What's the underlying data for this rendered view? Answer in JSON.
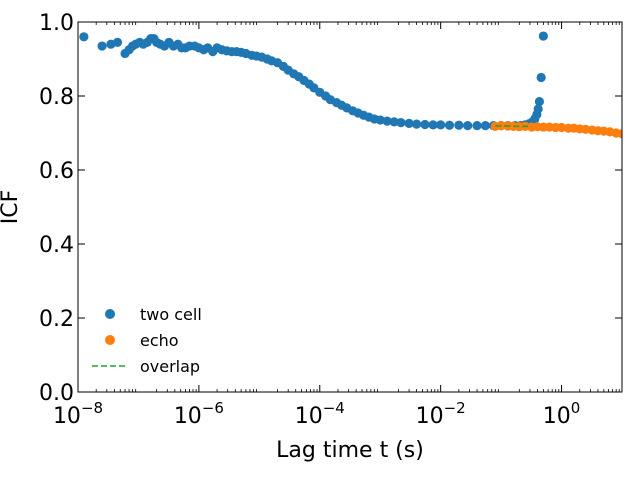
{
  "chart_data": {
    "type": "scatter",
    "xlabel": "Lag time t (s)",
    "ylabel": "ICF",
    "xscale": "log",
    "xlim": [
      1e-08,
      10
    ],
    "ylim": [
      0.0,
      1.0
    ],
    "x_ticks": [
      {
        "value": 1e-08,
        "base": "10",
        "exp": "−8"
      },
      {
        "value": 1e-06,
        "base": "10",
        "exp": "−6"
      },
      {
        "value": 0.0001,
        "base": "10",
        "exp": "−4"
      },
      {
        "value": 0.01,
        "base": "10",
        "exp": "−2"
      },
      {
        "value": 1,
        "base": "10",
        "exp": "0"
      }
    ],
    "y_ticks": [
      {
        "value": 0.0,
        "label": "0.0"
      },
      {
        "value": 0.2,
        "label": "0.2"
      },
      {
        "value": 0.4,
        "label": "0.4"
      },
      {
        "value": 0.6,
        "label": "0.6"
      },
      {
        "value": 0.8,
        "label": "0.8"
      },
      {
        "value": 1.0,
        "label": "1.0"
      }
    ],
    "grid": false,
    "legend_position": "lower-left",
    "series": [
      {
        "name": "two cell",
        "color": "#1f77b4",
        "style": "markers",
        "points": [
          [
            1.25e-08,
            0.96
          ],
          [
            2.5e-08,
            0.935
          ],
          [
            3.5e-08,
            0.94
          ],
          [
            4.5e-08,
            0.945
          ],
          [
            6e-08,
            0.915
          ],
          [
            7e-08,
            0.925
          ],
          [
            8e-08,
            0.935
          ],
          [
            9e-08,
            0.94
          ],
          [
            1.05e-07,
            0.945
          ],
          [
            1.2e-07,
            0.94
          ],
          [
            1.4e-07,
            0.945
          ],
          [
            1.6e-07,
            0.955
          ],
          [
            1.8e-07,
            0.955
          ],
          [
            2e-07,
            0.945
          ],
          [
            2.3e-07,
            0.94
          ],
          [
            2.7e-07,
            0.935
          ],
          [
            3.2e-07,
            0.945
          ],
          [
            3.8e-07,
            0.935
          ],
          [
            4.5e-07,
            0.94
          ],
          [
            5.2e-07,
            0.93
          ],
          [
            6e-07,
            0.93
          ],
          [
            7e-07,
            0.935
          ],
          [
            8.5e-07,
            0.935
          ],
          [
            1e-06,
            0.93
          ],
          [
            1.2e-06,
            0.925
          ],
          [
            1.4e-06,
            0.93
          ],
          [
            1.7e-06,
            0.92
          ],
          [
            2e-06,
            0.93
          ],
          [
            2.4e-06,
            0.925
          ],
          [
            2.9e-06,
            0.922
          ],
          [
            3.5e-06,
            0.92
          ],
          [
            4.2e-06,
            0.92
          ],
          [
            5e-06,
            0.918
          ],
          [
            6e-06,
            0.915
          ],
          [
            7.5e-06,
            0.91
          ],
          [
            9e-06,
            0.908
          ],
          [
            1.1e-05,
            0.905
          ],
          [
            1.35e-05,
            0.9
          ],
          [
            1.6e-05,
            0.895
          ],
          [
            2e-05,
            0.89
          ],
          [
            2.5e-05,
            0.88
          ],
          [
            3e-05,
            0.87
          ],
          [
            3.7e-05,
            0.86
          ],
          [
            4.5e-05,
            0.852
          ],
          [
            5.5e-05,
            0.842
          ],
          [
            6.7e-05,
            0.832
          ],
          [
            8e-05,
            0.822
          ],
          [
            0.0001,
            0.81
          ],
          [
            0.000125,
            0.8
          ],
          [
            0.00015,
            0.79
          ],
          [
            0.00019,
            0.782
          ],
          [
            0.00023,
            0.775
          ],
          [
            0.00028,
            0.768
          ],
          [
            0.00035,
            0.76
          ],
          [
            0.00043,
            0.754
          ],
          [
            0.00053,
            0.748
          ],
          [
            0.00065,
            0.743
          ],
          [
            0.0008,
            0.738
          ],
          [
            0.001,
            0.735
          ],
          [
            0.0013,
            0.732
          ],
          [
            0.0017,
            0.73
          ],
          [
            0.0022,
            0.728
          ],
          [
            0.003,
            0.726
          ],
          [
            0.004,
            0.724
          ],
          [
            0.0055,
            0.723
          ],
          [
            0.0075,
            0.722
          ],
          [
            0.01,
            0.722
          ],
          [
            0.014,
            0.721
          ],
          [
            0.02,
            0.721
          ],
          [
            0.028,
            0.72
          ],
          [
            0.04,
            0.72
          ],
          [
            0.055,
            0.72
          ],
          [
            0.075,
            0.72
          ],
          [
            0.1,
            0.72
          ],
          [
            0.13,
            0.72
          ],
          [
            0.17,
            0.72
          ],
          [
            0.21,
            0.72
          ],
          [
            0.25,
            0.722
          ],
          [
            0.29,
            0.725
          ],
          [
            0.33,
            0.73
          ],
          [
            0.36,
            0.738
          ],
          [
            0.39,
            0.75
          ],
          [
            0.41,
            0.765
          ],
          [
            0.43,
            0.785
          ],
          [
            0.46,
            0.85
          ],
          [
            0.5,
            0.962
          ]
        ]
      },
      {
        "name": "echo",
        "color": "#ff7f0e",
        "style": "markers",
        "points": [
          [
            0.08,
            0.718
          ],
          [
            0.1,
            0.72
          ],
          [
            0.13,
            0.719
          ],
          [
            0.16,
            0.718
          ],
          [
            0.2,
            0.717
          ],
          [
            0.25,
            0.718
          ],
          [
            0.32,
            0.716
          ],
          [
            0.4,
            0.717
          ],
          [
            0.5,
            0.716
          ],
          [
            0.63,
            0.716
          ],
          [
            0.8,
            0.715
          ],
          [
            1.0,
            0.715
          ],
          [
            1.3,
            0.713
          ],
          [
            1.6,
            0.713
          ],
          [
            2.0,
            0.711
          ],
          [
            2.5,
            0.71
          ],
          [
            3.2,
            0.708
          ],
          [
            4.0,
            0.706
          ],
          [
            5.0,
            0.705
          ],
          [
            6.3,
            0.703
          ],
          [
            8.0,
            0.7
          ],
          [
            10.0,
            0.698
          ]
        ]
      },
      {
        "name": "overlap",
        "color": "#2ca02c",
        "style": "dashed",
        "points": [
          [
            0.08,
            0.719
          ],
          [
            0.12,
            0.719
          ],
          [
            0.18,
            0.718
          ],
          [
            0.25,
            0.718
          ],
          [
            0.32,
            0.717
          ]
        ]
      }
    ]
  }
}
